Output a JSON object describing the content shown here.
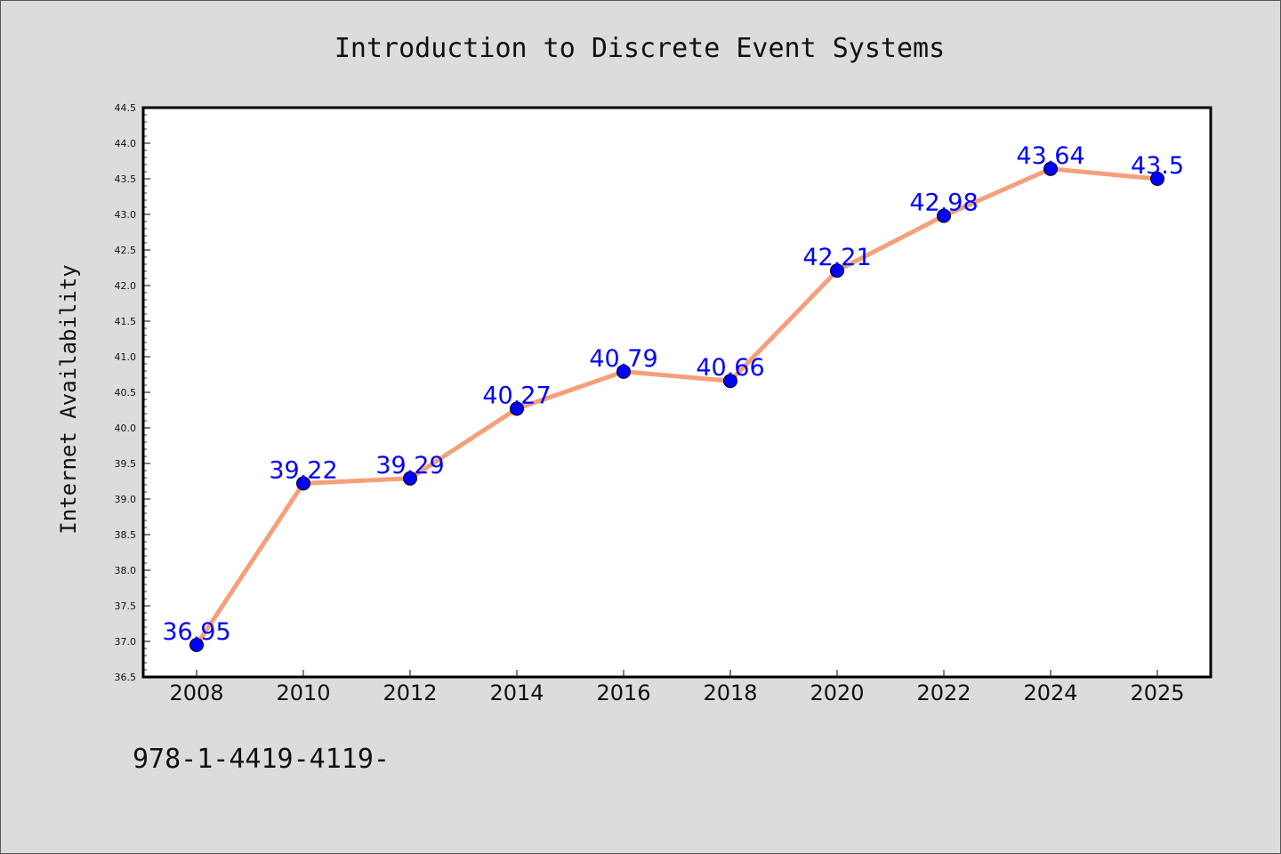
{
  "chart_data": {
    "type": "line",
    "title": "Introduction to Discrete Event Systems",
    "xlabel": "",
    "ylabel": "Internet Availability",
    "categories": [
      "2008",
      "2010",
      "2012",
      "2014",
      "2016",
      "2018",
      "2020",
      "2022",
      "2024",
      "2025"
    ],
    "series": [
      {
        "values": [
          36.95,
          39.22,
          39.29,
          40.27,
          40.79,
          40.66,
          42.21,
          42.98,
          43.64,
          43.5
        ],
        "data_labels": [
          "36.95",
          "39.22",
          "39.29",
          "40.27",
          "40.79",
          "40.66",
          "42.21",
          "42.98",
          "43.64",
          "43.5"
        ],
        "line_color": "#f4a07a",
        "marker_color": "#0000ff"
      }
    ],
    "ylim": [
      36.5,
      44.5
    ],
    "yticks": [
      "36.5",
      "37.0",
      "37.5",
      "38.0",
      "38.5",
      "39.0",
      "39.5",
      "40.0",
      "40.5",
      "41.0",
      "41.5",
      "42.0",
      "42.5",
      "43.0",
      "43.5",
      "44.0",
      "44.5"
    ],
    "grid": false,
    "legend": "none",
    "footnote": "978-1-4419-4119-"
  },
  "colors": {
    "background": "#dcdcdc",
    "plot_area": "#ffffff",
    "data_label": "#0000ff"
  }
}
